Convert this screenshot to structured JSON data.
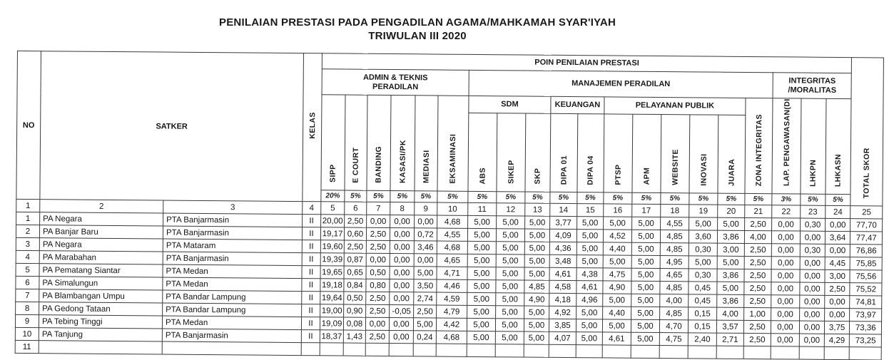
{
  "title_line1": "PENILAIAN PRESTASI PADA PENGADILAN AGAMA/MAHKAMAH SYAR'IYAH",
  "title_line2": "TRIWULAN III 2020",
  "header": {
    "no": "NO",
    "satker": "SATKER",
    "kelas": "KELAS",
    "poin": "POIN PENILAIAN PRESTASI",
    "total_skor": "TOTAL SKOR",
    "total_num": "25",
    "left_nums": [
      "1",
      "2",
      "3",
      "4"
    ],
    "groups": {
      "admin": "ADMIN & TEKNIS PERADILAN",
      "manajemen": "MANAJEMEN PERADILAN",
      "integritas": "INTEGRITAS /MORALITAS",
      "sdm": "SDM",
      "keuangan": "KEUANGAN",
      "pelayanan": "PELAYANAN PUBLIK"
    },
    "columns": [
      {
        "label": "SIPP",
        "weight": "20%",
        "num": "5"
      },
      {
        "label": "E COURT",
        "weight": "5%",
        "num": "6"
      },
      {
        "label": "BANDING",
        "weight": "5%",
        "num": "7"
      },
      {
        "label": "KASASI/PK",
        "weight": "5%",
        "num": "8"
      },
      {
        "label": "MEDIASI",
        "weight": "5%",
        "num": "9"
      },
      {
        "label": "EKSAMINASI",
        "weight": "5%",
        "num": "10"
      },
      {
        "label": "ABS",
        "weight": "5%",
        "num": "11"
      },
      {
        "label": "SIKEP",
        "weight": "5%",
        "num": "12"
      },
      {
        "label": "SKP",
        "weight": "5%",
        "num": "13"
      },
      {
        "label": "DIPA 01",
        "weight": "5%",
        "num": "14"
      },
      {
        "label": "DIPA 04",
        "weight": "5%",
        "num": "15"
      },
      {
        "label": "PTSP",
        "weight": "5%",
        "num": "16"
      },
      {
        "label": "APM",
        "weight": "5%",
        "num": "17"
      },
      {
        "label": "WEBSITE",
        "weight": "5%",
        "num": "18"
      },
      {
        "label": "INOVASI",
        "weight": "5%",
        "num": "19"
      },
      {
        "label": "JUARA",
        "weight": "5%",
        "num": "20"
      },
      {
        "label": "ZONA INTEGRITAS",
        "weight": "5%",
        "num": "21"
      },
      {
        "label": "LAP. PENGAWASAN(DI",
        "weight": "3%",
        "num": "22"
      },
      {
        "label": "LHKPN",
        "weight": "5%",
        "num": "23"
      },
      {
        "label": "LHKASN",
        "weight": "5%",
        "num": "24"
      }
    ]
  },
  "rows": [
    {
      "no": "1",
      "satker": "PA Negara",
      "pta": "PTA Banjarmasin",
      "kelas": "II",
      "values": [
        "20,00",
        "2,50",
        "0,00",
        "0,00",
        "0,00",
        "4,68",
        "5,00",
        "5,00",
        "5,00",
        "3,77",
        "5,00",
        "5,00",
        "5,00",
        "4,55",
        "5,00",
        "5,00",
        "2,50",
        "0,00",
        "0,30",
        "0,00"
      ],
      "total": "77,70"
    },
    {
      "no": "2",
      "satker": "PA Banjar Baru",
      "pta": "PTA Banjarmasin",
      "kelas": "II",
      "values": [
        "19,17",
        "0,60",
        "2,50",
        "0,00",
        "0,72",
        "4,55",
        "5,00",
        "5,00",
        "5,00",
        "4,09",
        "5,00",
        "4,52",
        "5,00",
        "4,85",
        "3,60",
        "3,86",
        "4,00",
        "0,00",
        "0,00",
        "3,64"
      ],
      "total": "77,47"
    },
    {
      "no": "3",
      "satker": "PA Negara",
      "pta": "PTA Mataram",
      "kelas": "II",
      "values": [
        "19,60",
        "2,50",
        "2,50",
        "0,00",
        "3,46",
        "4,68",
        "5,00",
        "5,00",
        "5,00",
        "4,36",
        "5,00",
        "4,40",
        "5,00",
        "4,85",
        "0,30",
        "3,00",
        "2,50",
        "0,00",
        "0,30",
        "0,00"
      ],
      "total": "76,86"
    },
    {
      "no": "4",
      "satker": "PA Marabahan",
      "pta": "PTA Banjarmasin",
      "kelas": "II",
      "values": [
        "19,39",
        "0,87",
        "0,00",
        "0,00",
        "0,00",
        "4,65",
        "5,00",
        "5,00",
        "5,00",
        "3,48",
        "5,00",
        "5,00",
        "5,00",
        "4,95",
        "5,00",
        "5,00",
        "2,50",
        "0,00",
        "0,00",
        "4,45"
      ],
      "total": "75,85"
    },
    {
      "no": "5",
      "satker": "PA Pematang Siantar",
      "pta": "PTA Medan",
      "kelas": "II",
      "values": [
        "19,65",
        "0,65",
        "0,50",
        "0,00",
        "5,00",
        "4,71",
        "5,00",
        "5,00",
        "5,00",
        "4,61",
        "4,38",
        "4,75",
        "5,00",
        "4,65",
        "0,30",
        "3,86",
        "2,50",
        "0,00",
        "0,00",
        "3,00"
      ],
      "total": "75,56"
    },
    {
      "no": "6",
      "satker": "PA Simalungun",
      "pta": "PTA Medan",
      "kelas": "II",
      "values": [
        "19,18",
        "0,84",
        "0,80",
        "0,00",
        "3,50",
        "4,46",
        "5,00",
        "5,00",
        "4,85",
        "4,58",
        "4,61",
        "4,90",
        "5,00",
        "4,85",
        "0,45",
        "5,00",
        "2,50",
        "0,00",
        "0,00",
        "2,50"
      ],
      "total": "75,52"
    },
    {
      "no": "7",
      "satker": "PA Blambangan Umpu",
      "pta": "PTA Bandar Lampung",
      "kelas": "II",
      "values": [
        "19,64",
        "0,50",
        "2,50",
        "0,00",
        "2,74",
        "4,59",
        "5,00",
        "5,00",
        "4,90",
        "4,18",
        "4,96",
        "5,00",
        "5,00",
        "4,00",
        "0,45",
        "3,86",
        "2,50",
        "0,00",
        "0,00",
        "0,00"
      ],
      "total": "74,81"
    },
    {
      "no": "8",
      "satker": "PA Gedong Tataan",
      "pta": "PTA Bandar Lampung",
      "kelas": "II",
      "values": [
        "19,00",
        "0,90",
        "2,50",
        "-0,05",
        "2,50",
        "4,79",
        "5,00",
        "5,00",
        "5,00",
        "4,92",
        "5,00",
        "4,40",
        "5,00",
        "4,85",
        "0,15",
        "4,00",
        "1,00",
        "0,00",
        "0,00",
        "0,00"
      ],
      "total": "73,97"
    },
    {
      "no": "9",
      "satker": "PA Tebing Tinggi",
      "pta": "PTA Medan",
      "kelas": "II",
      "values": [
        "19,09",
        "0,08",
        "0,00",
        "0,00",
        "5,00",
        "4,42",
        "5,00",
        "5,00",
        "5,00",
        "3,85",
        "5,00",
        "5,00",
        "5,00",
        "4,70",
        "0,15",
        "3,57",
        "2,50",
        "0,00",
        "0,00",
        "3,75"
      ],
      "total": "73,36"
    },
    {
      "no": "10",
      "satker": "PA Tanjung",
      "pta": "PTA Banjarmasin",
      "kelas": "II",
      "values": [
        "18,37",
        "1,43",
        "2,50",
        "0,00",
        "0,24",
        "4,68",
        "5,00",
        "5,00",
        "5,00",
        "4,07",
        "5,00",
        "4,61",
        "5,00",
        "4,75",
        "2,40",
        "2,71",
        "2,50",
        "0,00",
        "0,00",
        "4,29"
      ],
      "total": "73,25"
    },
    {
      "no": "11",
      "satker": "",
      "pta": "",
      "kelas": "",
      "values": [
        "",
        "",
        "",
        "",
        "",
        "",
        "",
        "",
        "",
        "",
        "",
        "",
        "",
        "",
        "",
        "",
        "",
        "",
        "",
        ""
      ],
      "total": ""
    }
  ]
}
